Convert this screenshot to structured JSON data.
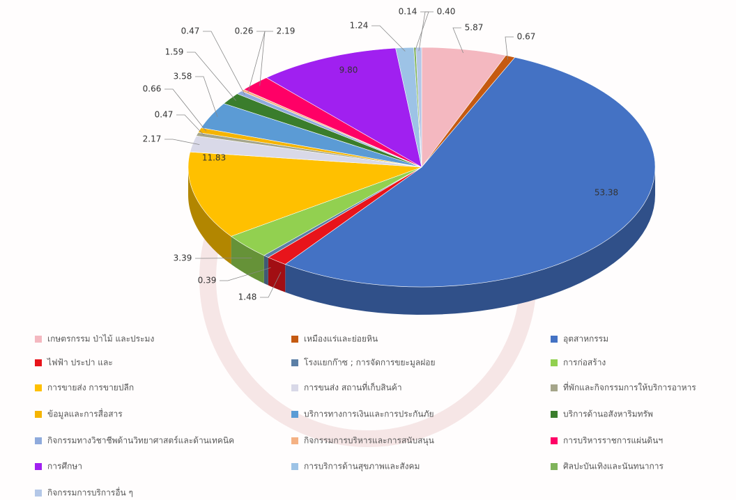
{
  "chart_data": {
    "type": "pie",
    "categories": [
      "เกษตรกรรม ป่าไม้ และประมง",
      "เหมืองแร่และย่อยหิน",
      "อุตสาหกรรม",
      "ไฟฟ้า ประปา และ",
      "โรงแยกก๊าซ ; การจัดการขยะมูลฝอย",
      "การก่อสร้าง",
      "การขายส่ง การขายปลีก",
      "การขนส่ง สถานที่เก็บสินค้า",
      "ที่พักและกิจกรรมการให้บริการอาหาร",
      "ข้อมูลและการสื่อสาร",
      "บริการทางการเงินและการประกันภัย",
      "บริการด้านอสังหาริมทรัพ",
      "กิจกรรมทางวิชาชีพด้านวิทยาศาสตร์และด้านเทคนิค",
      "กิจกรรมการบริหารและการสนับสนุน",
      "การบริหารราชการแผ่นดินฯ",
      "การศึกษา",
      "การบริการด้านสุขภาพและสังคม",
      "ศิลปะบันเทิงและนันทนาการ",
      "กิจกรรมการบริการอื่น ๆ"
    ],
    "values": [
      5.87,
      0.67,
      53.38,
      1.48,
      0.39,
      3.39,
      11.83,
      2.17,
      0.47,
      0.66,
      3.58,
      1.59,
      0.47,
      0.26,
      2.19,
      9.8,
      1.24,
      0.14,
      0.4
    ],
    "value_labels": [
      "5.87",
      "0.67",
      "53.38",
      "1.48",
      "0.39",
      "3.39",
      "11.83",
      "2.17",
      "0.47",
      "0.66",
      "3.58",
      "1.59",
      "0.47",
      "0.26",
      "2.19",
      "9.80",
      "1.24",
      "0.14",
      "0.40"
    ],
    "colors": [
      "#f4b8c0",
      "#c55a11",
      "#4472c4",
      "#e8141b",
      "#5b7fa6",
      "#92d050",
      "#ffc000",
      "#d9d9e8",
      "#a5a58a",
      "#f5b400",
      "#5b9bd5",
      "#3a7d2c",
      "#8faadc",
      "#f4b183",
      "#ff0066",
      "#a020f0",
      "#9dc3e6",
      "#7fb35a",
      "#b4c7e7"
    ],
    "legend": "bottom"
  }
}
